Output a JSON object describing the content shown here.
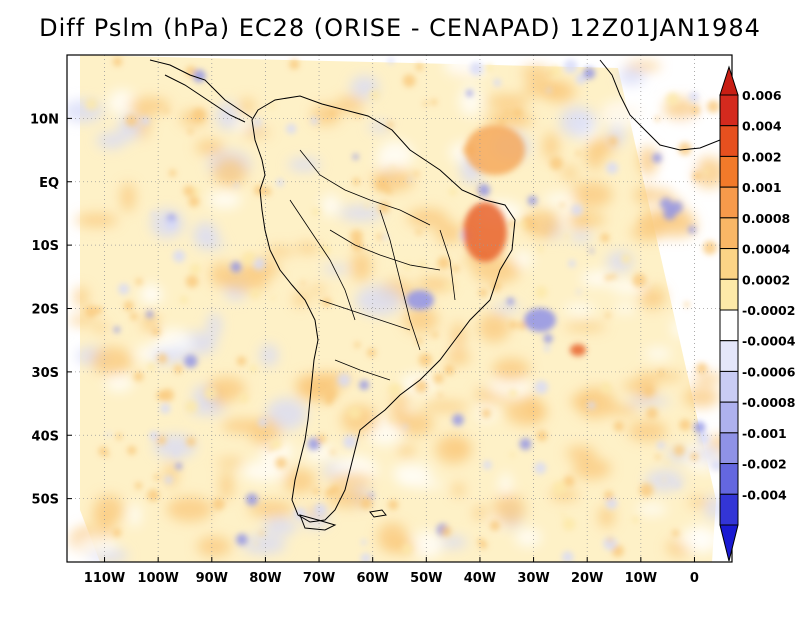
{
  "title": "Diff Pslm (hPa) EC28 (ORISE - CENAPAD) 12Z01JAN1984",
  "map": {
    "projection": "lat-lon",
    "lon_range": [
      -117,
      7
    ],
    "lat_range": [
      -60,
      20
    ],
    "grid": true,
    "x_ticks": [
      {
        "value": -110,
        "label": "110W"
      },
      {
        "value": -100,
        "label": "100W"
      },
      {
        "value": -90,
        "label": "90W"
      },
      {
        "value": -80,
        "label": "80W"
      },
      {
        "value": -70,
        "label": "70W"
      },
      {
        "value": -60,
        "label": "60W"
      },
      {
        "value": -50,
        "label": "50W"
      },
      {
        "value": -40,
        "label": "40W"
      },
      {
        "value": -30,
        "label": "30W"
      },
      {
        "value": -20,
        "label": "20W"
      },
      {
        "value": -10,
        "label": "10W"
      },
      {
        "value": 0,
        "label": "0"
      }
    ],
    "y_ticks": [
      {
        "value": 10,
        "label": "10N"
      },
      {
        "value": 0,
        "label": "EQ"
      },
      {
        "value": -10,
        "label": "10S"
      },
      {
        "value": -20,
        "label": "20S"
      },
      {
        "value": -30,
        "label": "30S"
      },
      {
        "value": -40,
        "label": "40S"
      },
      {
        "value": -50,
        "label": "50S"
      }
    ],
    "field_description_colors": {
      "positive_small": "#fde9a8",
      "positive_mid": "#f9c87c",
      "positive_high": "#e8622c",
      "negative_small": "#d6d9f7",
      "negative_mid": "#8f92e6"
    }
  },
  "colorbar": {
    "orientation": "vertical",
    "placement": "right",
    "levels": [
      {
        "label": "0.006",
        "color": "#d42a1e"
      },
      {
        "label": "0.004",
        "color": "#e6501f"
      },
      {
        "label": "0.002",
        "color": "#f27a2a"
      },
      {
        "label": "0.001",
        "color": "#f79a4b"
      },
      {
        "label": "0.0008",
        "color": "#f9b766"
      },
      {
        "label": "0.0004",
        "color": "#fcd486"
      },
      {
        "label": "0.0002",
        "color": "#fde9a8"
      },
      {
        "label": "-0.0002",
        "color": "#ffffff"
      },
      {
        "label": "-0.0004",
        "color": "#e4e6fa"
      },
      {
        "label": "-0.0006",
        "color": "#c9ccf4"
      },
      {
        "label": "-0.0008",
        "color": "#aeb1ee"
      },
      {
        "label": "-0.001",
        "color": "#8f92e6"
      },
      {
        "label": "-0.002",
        "color": "#6467df"
      },
      {
        "label": "-0.004",
        "color": "#3335d6"
      }
    ],
    "top_arrow_color": "#c81e14",
    "bottom_arrow_color": "#1a1ad2"
  }
}
